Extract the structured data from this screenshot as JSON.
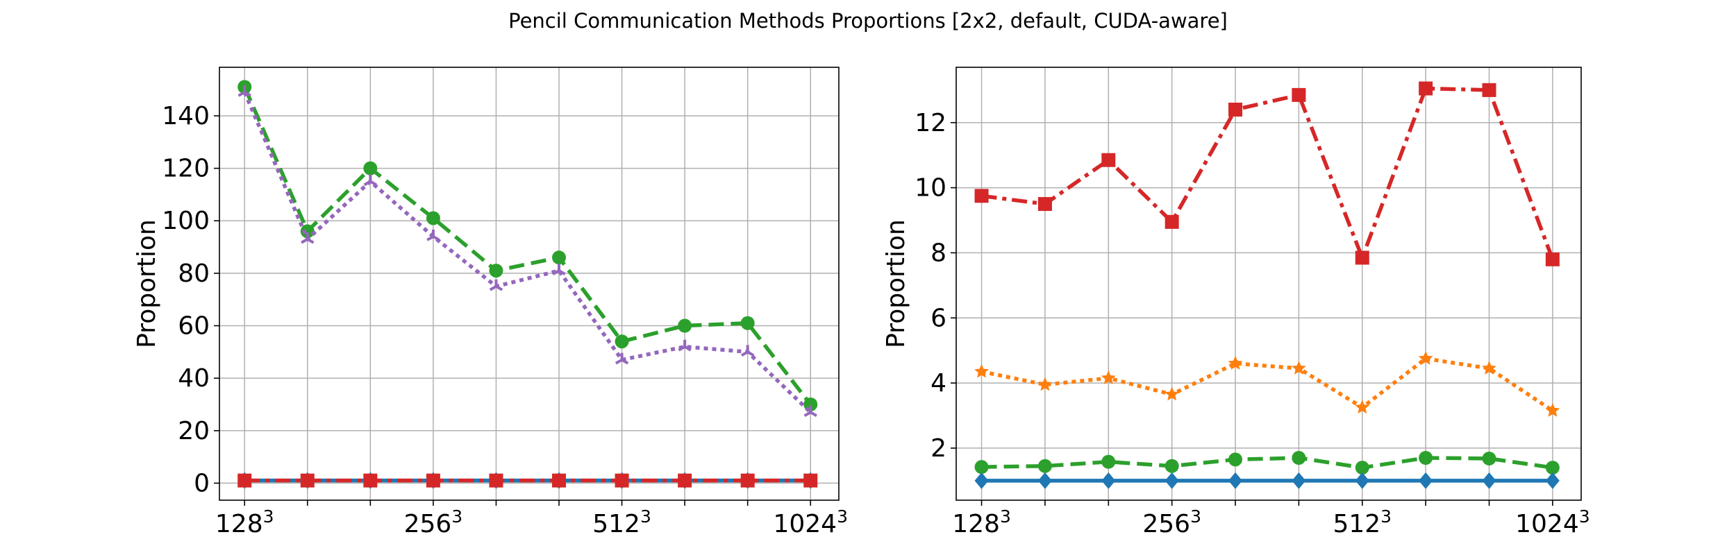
{
  "figure": {
    "title": "Pencil Communication Methods Proportions [2x2, default, CUDA-aware]"
  },
  "chart_data": [
    {
      "type": "line",
      "title": "",
      "xlabel": "",
      "ylabel": "Proportion",
      "grid": true,
      "xlim": [
        -0.4,
        9.45
      ],
      "ylim": [
        -6.5,
        158.5
      ],
      "yticks": [
        0,
        20,
        40,
        60,
        80,
        100,
        120,
        140
      ],
      "x_ticks": [
        {
          "pos": 0,
          "base": "128",
          "exp": "3"
        },
        {
          "pos": 3,
          "base": "256",
          "exp": "3"
        },
        {
          "pos": 6,
          "base": "512",
          "exp": "3"
        },
        {
          "pos": 9,
          "base": "1024",
          "exp": "3"
        }
      ],
      "x": [
        0,
        1,
        2,
        3,
        4,
        5,
        6,
        7,
        8,
        9
      ],
      "series": [
        {
          "color": "#2ca02c",
          "dash": "dashed",
          "marker": "circle",
          "values": [
            151,
            96,
            120,
            101,
            81,
            86,
            54,
            60,
            61,
            30
          ]
        },
        {
          "color": "#9467bd",
          "dash": "dotted",
          "marker": "tri_down",
          "values": [
            149,
            93,
            115,
            94,
            75,
            81,
            47,
            52,
            50,
            27
          ]
        },
        {
          "color": "#1f77b4",
          "dash": "solid",
          "marker": "diamond",
          "values": [
            1,
            1,
            1,
            1,
            1,
            1,
            1,
            1,
            1,
            1
          ]
        },
        {
          "color": "#d62728",
          "dash": "dashdot",
          "marker": "square",
          "values": [
            1,
            1,
            1,
            1,
            1,
            1,
            1,
            1,
            1,
            1
          ]
        }
      ]
    },
    {
      "type": "line",
      "title": "",
      "xlabel": "",
      "ylabel": "Proportion",
      "grid": true,
      "xlim": [
        -0.4,
        9.45
      ],
      "ylim": [
        0.4,
        13.7
      ],
      "yticks": [
        2,
        4,
        6,
        8,
        10,
        12
      ],
      "x_ticks": [
        {
          "pos": 0,
          "base": "128",
          "exp": "3"
        },
        {
          "pos": 3,
          "base": "256",
          "exp": "3"
        },
        {
          "pos": 6,
          "base": "512",
          "exp": "3"
        },
        {
          "pos": 9,
          "base": "1024",
          "exp": "3"
        }
      ],
      "x": [
        0,
        1,
        2,
        3,
        4,
        5,
        6,
        7,
        8,
        9
      ],
      "series": [
        {
          "color": "#d62728",
          "dash": "dashdot",
          "marker": "square",
          "values": [
            9.75,
            9.5,
            10.85,
            8.95,
            12.4,
            12.85,
            7.85,
            13.05,
            13.0,
            7.8
          ]
        },
        {
          "color": "#ff7f0e",
          "dash": "dotted",
          "marker": "star",
          "values": [
            4.35,
            3.95,
            4.15,
            3.65,
            4.6,
            4.45,
            3.25,
            4.75,
            4.45,
            3.15
          ]
        },
        {
          "color": "#2ca02c",
          "dash": "dashed",
          "marker": "circle",
          "values": [
            1.42,
            1.45,
            1.58,
            1.45,
            1.65,
            1.7,
            1.4,
            1.7,
            1.68,
            1.4
          ]
        },
        {
          "color": "#1f77b4",
          "dash": "solid",
          "marker": "diamond",
          "values": [
            1.0,
            1.0,
            1.0,
            1.0,
            1.0,
            1.0,
            1.0,
            1.0,
            1.0,
            1.0
          ]
        }
      ]
    }
  ]
}
